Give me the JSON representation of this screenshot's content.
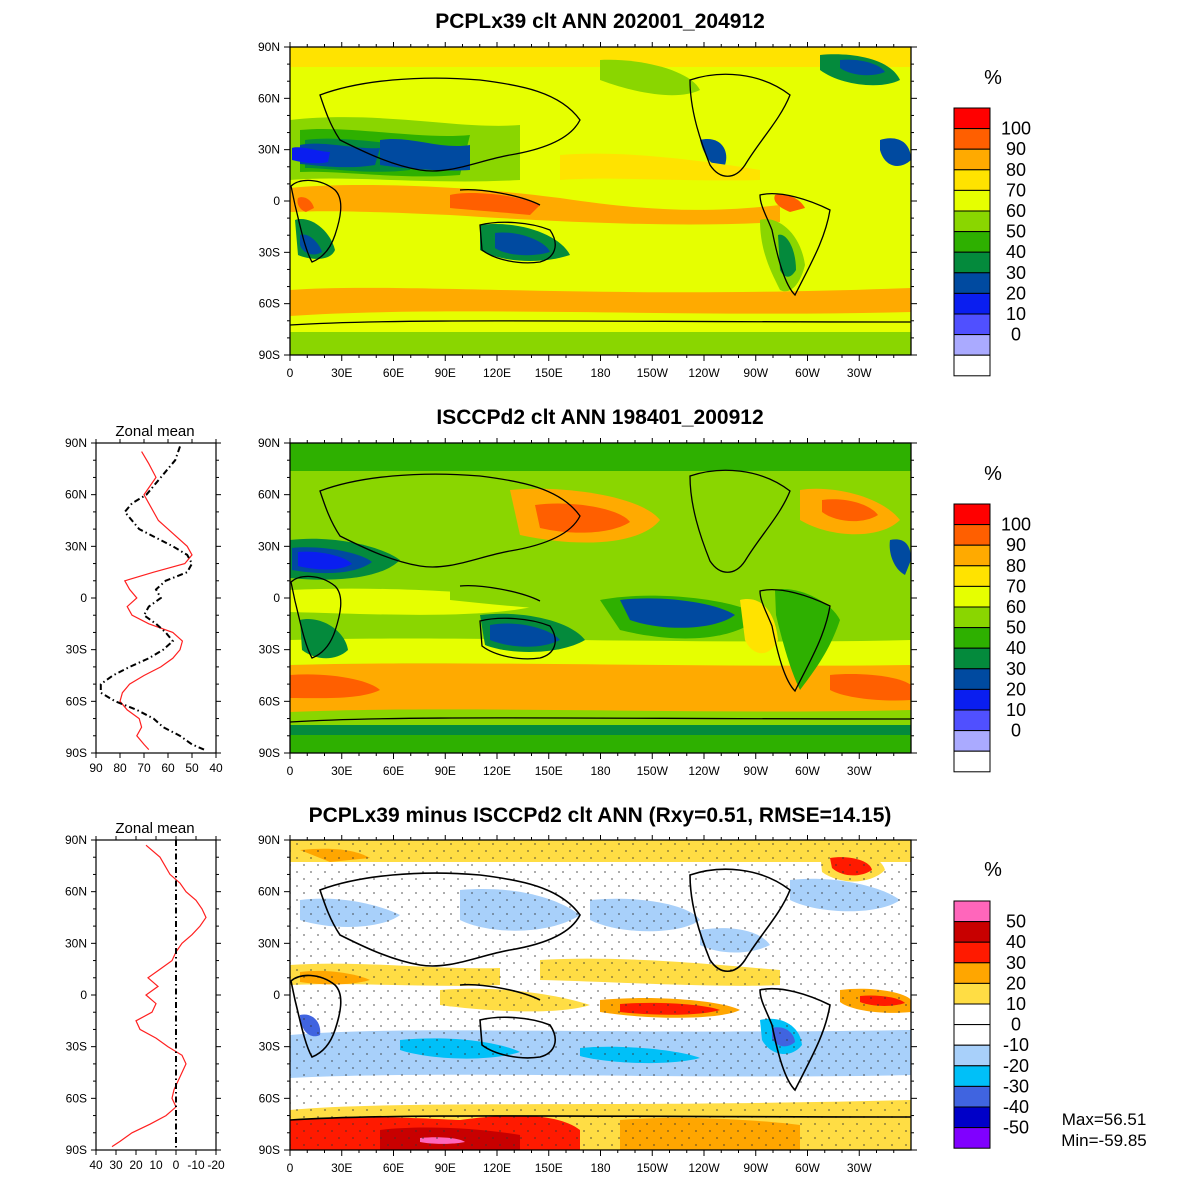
{
  "chart_data": [
    {
      "type": "heatmap",
      "title": "PCPLx39 clt ANN 202001_204912",
      "xticks": [
        "0",
        "30E",
        "60E",
        "90E",
        "120E",
        "150E",
        "180",
        "150W",
        "120W",
        "90W",
        "60W",
        "30W"
      ],
      "yticks": [
        "90N",
        "60N",
        "30N",
        "0",
        "30S",
        "60S",
        "90S"
      ],
      "colorbar": {
        "unit": "%",
        "labels": [
          "100",
          "90",
          "80",
          "70",
          "60",
          "50",
          "40",
          "30",
          "20",
          "10",
          "0"
        ],
        "colors": [
          "#ff0000",
          "#ff5f00",
          "#ffaa00",
          "#ffe300",
          "#e6ff00",
          "#8ad600",
          "#2eb000",
          "#048a3c",
          "#004aa0",
          "#0a1ef0",
          "#5050ff",
          "#aaaaff",
          "#ffffff"
        ]
      }
    },
    {
      "type": "heatmap",
      "title": "ISCCPd2 clt ANN 198401_200912",
      "xticks": [
        "0",
        "30E",
        "60E",
        "90E",
        "120E",
        "150E",
        "180",
        "150W",
        "120W",
        "90W",
        "60W",
        "30W"
      ],
      "yticks": [
        "90N",
        "60N",
        "30N",
        "0",
        "30S",
        "60S",
        "90S"
      ],
      "colorbar": {
        "unit": "%",
        "labels": [
          "100",
          "90",
          "80",
          "70",
          "60",
          "50",
          "40",
          "30",
          "20",
          "10",
          "0"
        ],
        "colors": [
          "#ff0000",
          "#ff5f00",
          "#ffaa00",
          "#ffe300",
          "#e6ff00",
          "#8ad600",
          "#2eb000",
          "#048a3c",
          "#004aa0",
          "#0a1ef0",
          "#5050ff",
          "#aaaaff",
          "#ffffff"
        ]
      }
    },
    {
      "type": "line",
      "title": "Zonal mean",
      "xticks": [
        "90",
        "80",
        "70",
        "60",
        "50",
        "40"
      ],
      "xlim": [
        90,
        40
      ],
      "yticks": [
        "90N",
        "60N",
        "30N",
        "0",
        "30S",
        "60S",
        "90S"
      ],
      "ylim": [
        -90,
        90
      ],
      "series": [
        {
          "style": "solid",
          "color": "#ff2020",
          "lat": [
            85,
            78,
            70,
            60,
            55,
            45,
            40,
            30,
            25,
            20,
            15,
            10,
            5,
            0,
            -5,
            -10,
            -15,
            -20,
            -25,
            -30,
            -35,
            -40,
            -45,
            -50,
            -55,
            -60,
            -65,
            -70,
            -75,
            -80,
            -85,
            -88
          ],
          "value": [
            71,
            68,
            65,
            70,
            68,
            64,
            60,
            52,
            50,
            53,
            66,
            78,
            76,
            73,
            77,
            75,
            68,
            58,
            54,
            55,
            58,
            63,
            70,
            76,
            79,
            80,
            77,
            72,
            71,
            73,
            70,
            68
          ]
        },
        {
          "style": "dashed",
          "color": "#000000",
          "lat": [
            88,
            80,
            70,
            60,
            55,
            50,
            45,
            40,
            35,
            30,
            25,
            20,
            15,
            10,
            5,
            0,
            -5,
            -10,
            -15,
            -20,
            -25,
            -30,
            -35,
            -40,
            -45,
            -50,
            -55,
            -60,
            -65,
            -70,
            -75,
            -80,
            -85,
            -88
          ],
          "value": [
            55,
            57,
            63,
            69,
            75,
            78,
            75,
            72,
            65,
            58,
            52,
            50,
            52,
            61,
            65,
            63,
            68,
            70,
            65,
            61,
            58,
            62,
            68,
            76,
            83,
            88,
            88,
            82,
            73,
            66,
            62,
            55,
            50,
            45
          ]
        }
      ]
    },
    {
      "type": "heatmap",
      "title": "PCPLx39 minus ISCCPd2 clt ANN (Rxy=0.51, RMSE=14.15)",
      "xticks": [
        "0",
        "30E",
        "60E",
        "90E",
        "120E",
        "150E",
        "180",
        "150W",
        "120W",
        "90W",
        "60W",
        "30W"
      ],
      "yticks": [
        "90N",
        "60N",
        "30N",
        "0",
        "30S",
        "60S",
        "90S"
      ],
      "colorbar": {
        "unit": "%",
        "labels": [
          "50",
          "40",
          "30",
          "20",
          "10",
          "0",
          "-10",
          "-20",
          "-30",
          "-40",
          "-50"
        ],
        "colors": [
          "#ff66bb",
          "#c80000",
          "#ff1a00",
          "#ffa600",
          "#ffdd44",
          "#ffffff",
          "#ffffff",
          "#a8d0fa",
          "#00c0f8",
          "#4064e0",
          "#0000c8",
          "#8000ff"
        ]
      },
      "max_label": "Max=56.51",
      "min_label": "Min=-59.85"
    },
    {
      "type": "line",
      "title": "Zonal mean",
      "xticks": [
        "40",
        "30",
        "20",
        "10",
        "0",
        "-10",
        "-20"
      ],
      "xlim": [
        40,
        -20
      ],
      "yticks": [
        "90N",
        "60N",
        "30N",
        "0",
        "30S",
        "60S",
        "90S"
      ],
      "ylim": [
        -90,
        90
      ],
      "series": [
        {
          "style": "solid",
          "color": "#ff2020",
          "lat": [
            87,
            80,
            70,
            65,
            60,
            55,
            50,
            45,
            40,
            35,
            30,
            25,
            20,
            15,
            10,
            5,
            0,
            -5,
            -10,
            -15,
            -20,
            -25,
            -30,
            -35,
            -40,
            -45,
            -50,
            -55,
            -60,
            -65,
            -70,
            -75,
            -80,
            -85,
            -88
          ],
          "value": [
            15,
            8,
            3,
            -2,
            -5,
            -10,
            -13,
            -15,
            -12,
            -8,
            -3,
            0,
            2,
            8,
            14,
            9,
            15,
            10,
            12,
            20,
            18,
            10,
            4,
            -3,
            -5,
            -3,
            -1,
            1,
            2,
            0,
            5,
            13,
            22,
            28,
            32
          ]
        },
        {
          "style": "dashed",
          "color": "#000000",
          "lat": [
            90,
            -90
          ],
          "value": [
            0,
            0
          ]
        }
      ]
    }
  ]
}
